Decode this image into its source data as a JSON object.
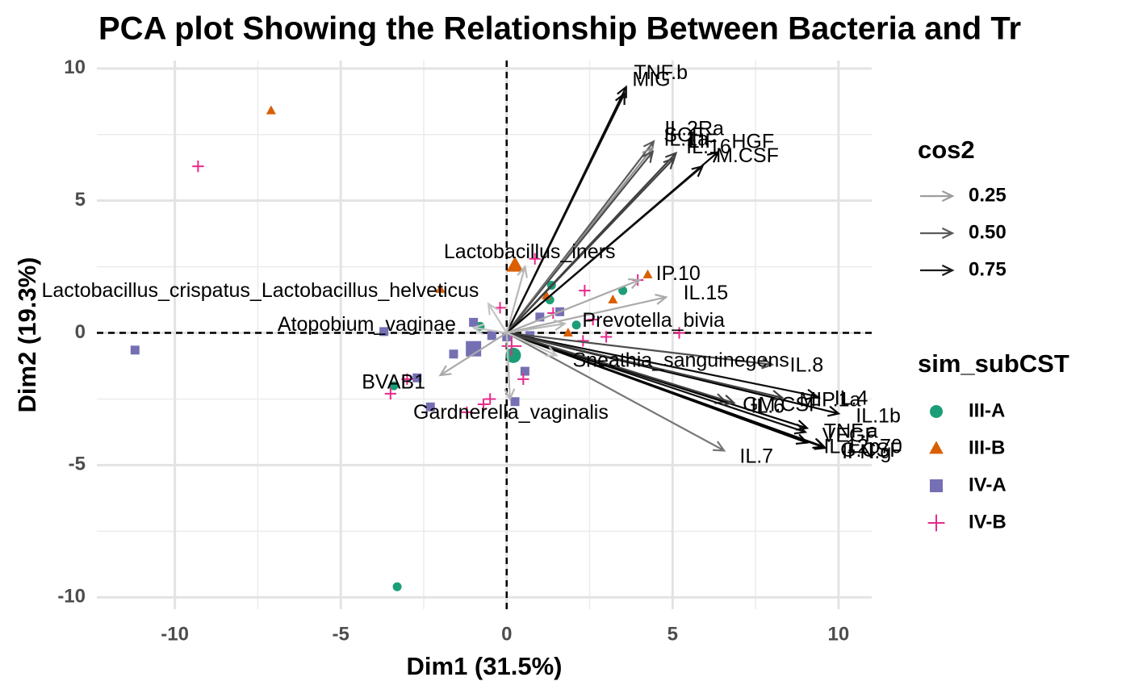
{
  "chart_data": {
    "type": "biplot",
    "title": "PCA plot Showing the Relationship Between Bacteria and Tr",
    "x_label": "Dim1 (31.5%)",
    "y_label": "Dim2 (19.3%)",
    "xlim": [
      -12.35,
      11.0
    ],
    "ylim": [
      -10.45,
      10.3
    ],
    "xticks": [
      -10,
      -5,
      0,
      5,
      10
    ],
    "yticks": [
      -10,
      -5,
      0,
      5,
      10
    ],
    "xminor": [
      -7.5,
      -2.5,
      2.5,
      7.5
    ],
    "yminor": [
      -7.5,
      -2.5,
      2.5,
      7.5
    ],
    "hline": 0,
    "vline": 0,
    "grid": true,
    "cos2_title": "cos2",
    "cos2_colors": [
      "#c4c4c4",
      "#000000"
    ],
    "cos2_lim": [
      0.1,
      0.85
    ],
    "cos2_legend": [
      0.25,
      {
        "value": 0.5,
        "label": "0.50"
      },
      0.75
    ],
    "group_title": "sim_subCST",
    "variables": [
      {
        "name": "TNF.b",
        "x": 3.6,
        "y": 9.3,
        "cos2": 0.8
      },
      {
        "name": "MIG",
        "x": 3.55,
        "y": 9.05,
        "cos2": 0.8
      },
      {
        "name": "IL.2Ra",
        "x": 4.43,
        "y": 7.24,
        "cos2": 0.5
      },
      {
        "name": "SCF",
        "x": 4.4,
        "y": 7.0,
        "cos2": 0.3
      },
      {
        "name": "LIF",
        "x": 5.1,
        "y": 6.8,
        "cos2": 0.6
      },
      {
        "name": "IL.1a",
        "x": 4.4,
        "y": 6.85,
        "cos2": 0.55
      },
      {
        "name": "IL.16",
        "x": 5.04,
        "y": 6.6,
        "cos2": 0.6
      },
      {
        "name": "HGF",
        "x": 6.37,
        "y": 6.84,
        "cos2": 0.85
      },
      {
        "name": "M.CSF",
        "x": 5.9,
        "y": 6.3,
        "cos2": 0.8
      },
      {
        "name": "IP.10",
        "x": 4.0,
        "y": 2.0,
        "cos2": 0.2
      },
      {
        "name": "IL.15",
        "x": 4.8,
        "y": 1.35,
        "cos2": 0.2
      },
      {
        "name": "IL.8",
        "x": 8.0,
        "y": -1.2,
        "cos2": 0.55
      },
      {
        "name": "IL.4",
        "x": 9.35,
        "y": -2.4,
        "cos2": 0.8
      },
      {
        "name": "IL.1b",
        "x": 10.0,
        "y": -3.05,
        "cos2": 0.85
      },
      {
        "name": "MIP.1a",
        "x": 8.3,
        "y": -2.45,
        "cos2": 0.6
      },
      {
        "name": "GM.CSF",
        "x": 6.6,
        "y": -2.6,
        "cos2": 0.55
      },
      {
        "name": "TNF.a",
        "x": 9.05,
        "y": -3.6,
        "cos2": 0.85
      },
      {
        "name": "VEGF",
        "x": 9.0,
        "y": -3.75,
        "cos2": 0.8
      },
      {
        "name": "IFN.g",
        "x": 9.6,
        "y": -4.35,
        "cos2": 0.85
      },
      {
        "name": "G.CSF",
        "x": 9.55,
        "y": -4.3,
        "cos2": 0.85
      },
      {
        "name": "IL.12p70",
        "x": 9.05,
        "y": -4.15,
        "cos2": 0.85
      },
      {
        "name": "IL.6",
        "x": 6.85,
        "y": -2.65,
        "cos2": 0.6
      },
      {
        "name": "IL.7",
        "x": 6.55,
        "y": -4.45,
        "cos2": 0.4
      },
      {
        "name": "Lactobacillus_iners",
        "x": 0.55,
        "y": 2.5,
        "cos2": 0.15
      },
      {
        "name": "Lactobacillus_crispatus_Lactobacillus_helveticus",
        "x": -0.55,
        "y": 1.1,
        "cos2": 0.1
      },
      {
        "name": "Atopobium_vaginae",
        "x": -1.0,
        "y": 0.2,
        "cos2": 0.1
      },
      {
        "name": "Prevotella_bivia",
        "x": 1.75,
        "y": 0.35,
        "cos2": 0.15
      },
      {
        "name": "BVAB1",
        "x": -2.0,
        "y": -1.6,
        "cos2": 0.2
      },
      {
        "name": "Sneathia_sanguinegens",
        "x": 1.5,
        "y": -0.85,
        "cos2": 0.1
      },
      {
        "name": "Gardnerella_vaginalis",
        "x": 0.1,
        "y": -2.5,
        "cos2": 0.15
      }
    ],
    "series": [
      {
        "name": "III-A",
        "color": "#1b9e77",
        "shape": "circle",
        "centroid": [
          0.2,
          -0.85
        ],
        "x": [
          -3.4,
          -3.3,
          -0.8,
          1.3,
          1.35,
          3.5,
          2.1
        ],
        "y": [
          -2.0,
          -9.6,
          0.25,
          1.25,
          1.8,
          1.6,
          0.3
        ]
      },
      {
        "name": "III-B",
        "color": "#d95f02",
        "shape": "triangle",
        "centroid": [
          0.25,
          2.55
        ],
        "x": [
          -7.1,
          -2.0,
          3.2,
          4.25,
          1.85,
          1.2
        ],
        "y": [
          8.4,
          1.65,
          1.25,
          2.2,
          0.0,
          1.4
        ]
      },
      {
        "name": "IV-A",
        "color": "#7570b3",
        "shape": "square",
        "centroid": [
          -1.0,
          -0.6
        ],
        "x": [
          -11.2,
          -3.7,
          -2.7,
          -2.3,
          -1.6,
          -1.0,
          -0.45,
          0.25,
          0.55,
          0.7,
          1.0,
          1.6,
          0.0
        ],
        "y": [
          -0.65,
          0.05,
          -1.7,
          -2.8,
          -0.8,
          0.4,
          -0.1,
          -2.6,
          -1.45,
          -0.1,
          0.6,
          0.8,
          -0.15
        ]
      },
      {
        "name": "IV-B",
        "color": "#e7298a",
        "shape": "plus",
        "centroid": [
          0.15,
          -0.5
        ],
        "x": [
          -9.3,
          -3.5,
          -3.0,
          -1.2,
          -0.7,
          -0.5,
          -0.2,
          0.5,
          0.85,
          1.4,
          2.3,
          2.35,
          2.6,
          3.0,
          3.95,
          5.2
        ],
        "y": [
          6.3,
          -2.3,
          -1.75,
          -3.0,
          -2.7,
          -2.5,
          0.95,
          -1.75,
          2.8,
          0.75,
          -0.3,
          1.6,
          0.5,
          -0.15,
          2.0,
          0.0
        ]
      }
    ]
  }
}
